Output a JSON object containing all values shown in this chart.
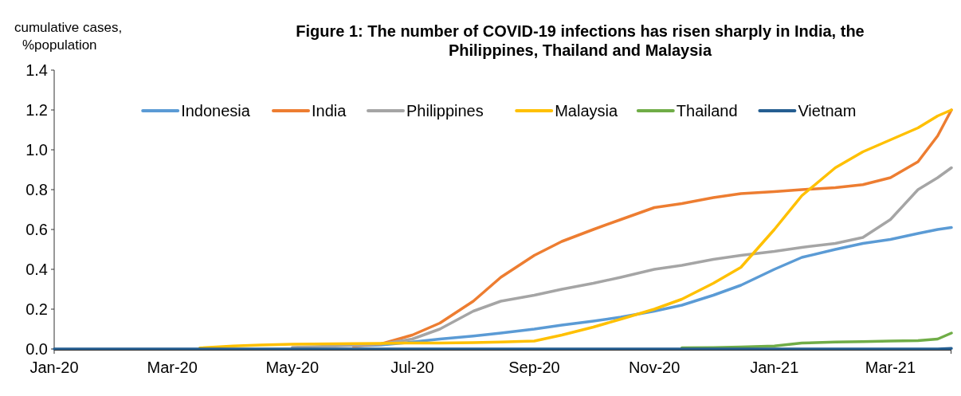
{
  "chart_data": {
    "type": "line",
    "title": "Figure 1: The number of COVID-19 infections has risen sharply in India, the Philippines, Thailand and Malaysia",
    "ylabel": "cumulative cases, %population",
    "x": [
      "2020-01-01",
      "2020-02-01",
      "2020-03-01",
      "2020-03-15",
      "2020-04-01",
      "2020-04-15",
      "2020-05-01",
      "2020-06-01",
      "2020-06-15",
      "2020-07-01",
      "2020-07-15",
      "2020-08-01",
      "2020-08-15",
      "2020-09-01",
      "2020-09-15",
      "2020-10-01",
      "2020-10-15",
      "2020-11-01",
      "2020-11-15",
      "2020-12-01",
      "2020-12-15",
      "2021-01-01",
      "2021-01-15",
      "2021-02-01",
      "2021-02-15",
      "2021-03-01",
      "2021-03-15",
      "2021-03-25",
      "2021-04-01"
    ],
    "series": [
      {
        "name": "Indonesia",
        "color": "#5b9bd5",
        "values": [
          null,
          null,
          null,
          null,
          null,
          null,
          null,
          0.015,
          0.02,
          0.035,
          0.05,
          0.065,
          0.08,
          0.1,
          0.12,
          0.14,
          0.16,
          0.19,
          0.22,
          0.27,
          0.32,
          0.4,
          0.46,
          0.5,
          0.53,
          0.55,
          0.58,
          0.6,
          0.61
        ]
      },
      {
        "name": "India",
        "color": "#ed7d31",
        "values": [
          null,
          null,
          null,
          null,
          null,
          null,
          null,
          0.015,
          0.025,
          0.07,
          0.13,
          0.24,
          0.36,
          0.47,
          0.54,
          0.6,
          0.65,
          0.71,
          0.73,
          0.76,
          0.78,
          0.79,
          0.8,
          0.81,
          0.825,
          0.86,
          0.94,
          1.07,
          1.2
        ]
      },
      {
        "name": "Philippines",
        "color": "#a5a5a5",
        "values": [
          null,
          null,
          null,
          null,
          null,
          null,
          0.008,
          0.018,
          0.025,
          0.05,
          0.1,
          0.19,
          0.24,
          0.27,
          0.3,
          0.33,
          0.36,
          0.4,
          0.42,
          0.45,
          0.47,
          0.49,
          0.51,
          0.53,
          0.56,
          0.65,
          0.8,
          0.86,
          0.91
        ]
      },
      {
        "name": "Malaysia",
        "color": "#ffc000",
        "values": [
          null,
          null,
          null,
          0.005,
          0.015,
          0.02,
          0.024,
          0.027,
          0.028,
          0.03,
          0.03,
          0.032,
          0.035,
          0.04,
          0.07,
          0.11,
          0.15,
          0.2,
          0.25,
          0.33,
          0.41,
          0.6,
          0.77,
          0.91,
          0.99,
          1.05,
          1.11,
          1.17,
          1.2
        ]
      },
      {
        "name": "Thailand",
        "color": "#70ad47",
        "values": [
          null,
          null,
          null,
          null,
          null,
          null,
          null,
          null,
          null,
          null,
          null,
          null,
          null,
          null,
          null,
          null,
          null,
          null,
          0.006,
          0.007,
          0.01,
          0.015,
          0.03,
          0.035,
          0.037,
          0.04,
          0.042,
          0.05,
          0.08
        ]
      },
      {
        "name": "Vietnam",
        "color": "#255e91",
        "values": [
          0,
          0,
          0,
          0,
          0,
          0,
          0,
          0,
          0,
          0,
          0,
          0,
          0,
          0,
          0,
          0,
          0,
          0,
          0,
          0,
          0,
          0,
          0,
          0,
          0,
          0,
          0,
          0,
          0.003
        ]
      }
    ],
    "xlim": [
      "2020-01-01",
      "2021-04-01"
    ],
    "xticks": [
      {
        "value": "2020-01-01",
        "label": "Jan-20"
      },
      {
        "value": "2020-03-01",
        "label": "Mar-20"
      },
      {
        "value": "2020-05-01",
        "label": "May-20"
      },
      {
        "value": "2020-07-01",
        "label": "Jul-20"
      },
      {
        "value": "2020-09-01",
        "label": "Sep-20"
      },
      {
        "value": "2020-11-01",
        "label": "Nov-20"
      },
      {
        "value": "2021-01-01",
        "label": "Jan-21"
      },
      {
        "value": "2021-03-01",
        "label": "Mar-21"
      }
    ],
    "ylim": [
      0,
      1.4
    ],
    "yticks": [
      {
        "value": 0,
        "label": "0.0"
      },
      {
        "value": 0.2,
        "label": "0.2"
      },
      {
        "value": 0.4,
        "label": "0.4"
      },
      {
        "value": 0.6,
        "label": "0.6"
      },
      {
        "value": 0.8,
        "label": "0.8"
      },
      {
        "value": 1,
        "label": "1.0"
      },
      {
        "value": 1.2,
        "label": "1.2"
      },
      {
        "value": 1.4,
        "label": "1.4"
      }
    ],
    "legend": "top",
    "grid": false,
    "marker": "none",
    "line_style": "solid"
  }
}
